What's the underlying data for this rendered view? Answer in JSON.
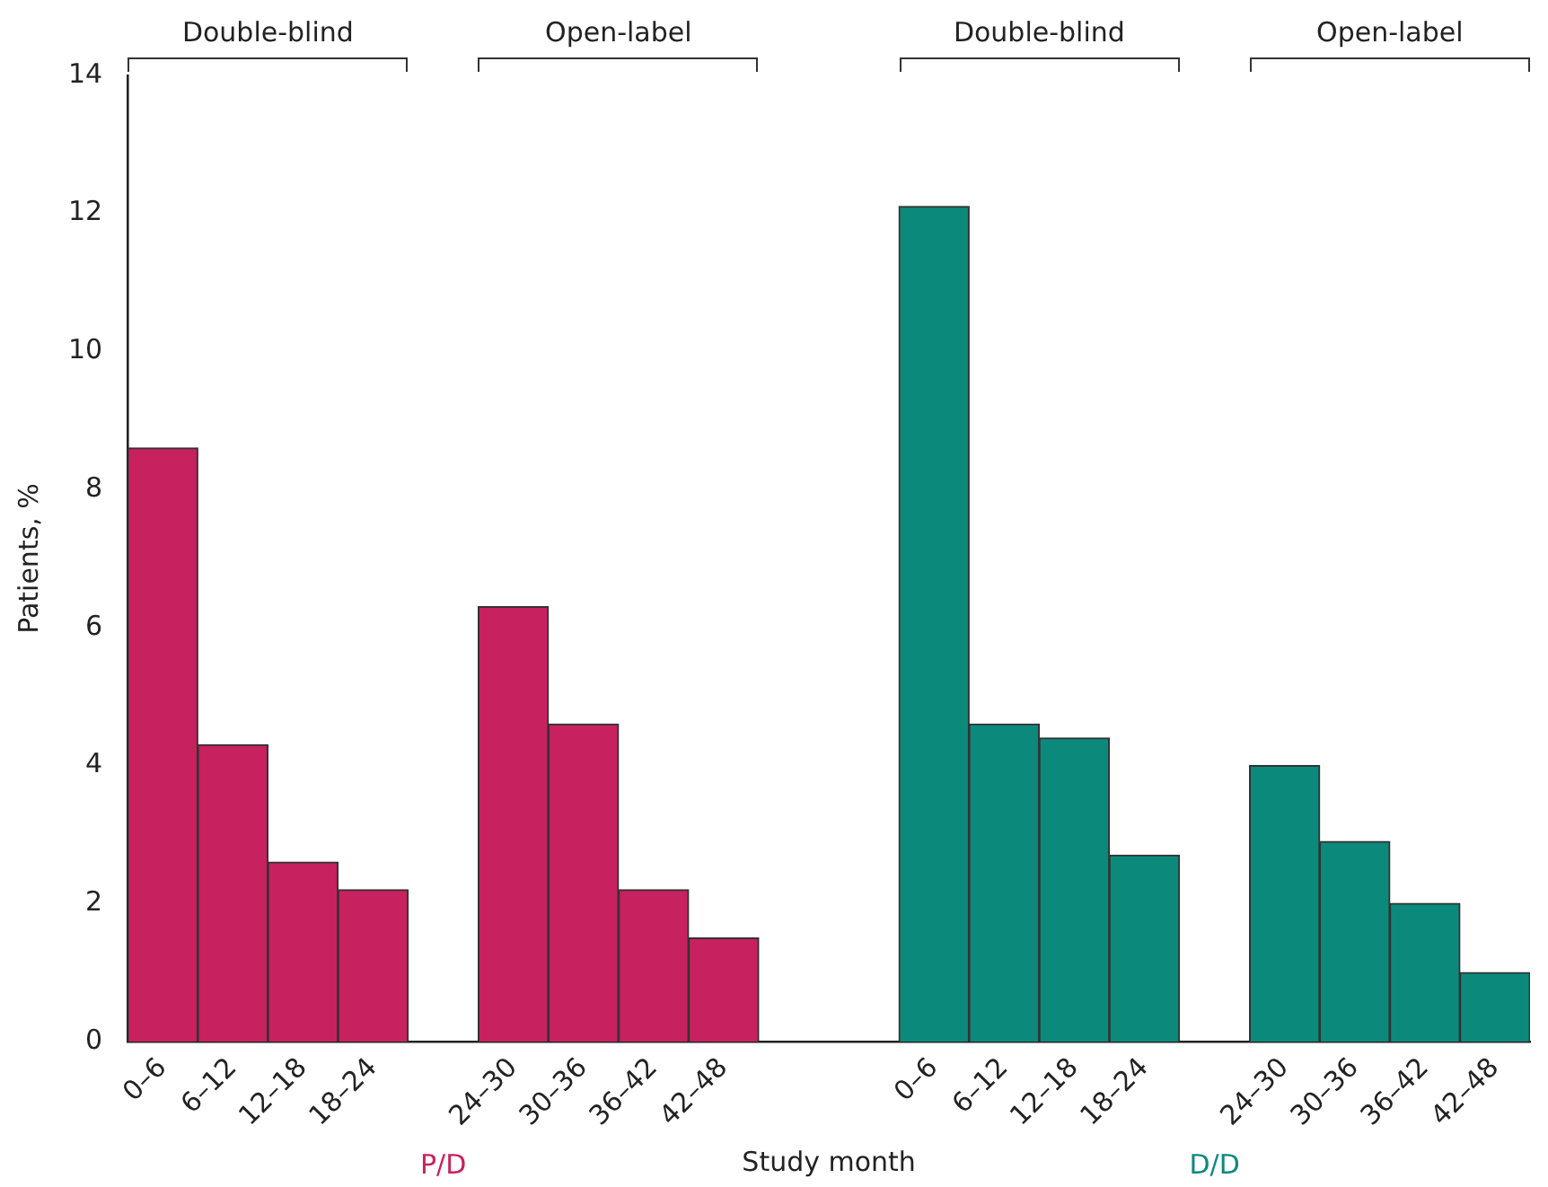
{
  "chart_data": {
    "type": "bar",
    "xlabel": "Study month",
    "ylabel": "Patients, %",
    "categories": [
      "0–6",
      "6–12",
      "12–18",
      "18–24",
      null,
      "24–30",
      "30–36",
      "36–42",
      "42–48",
      null,
      null,
      "0–6",
      "6–12",
      "12–18",
      "18–24",
      null,
      "24–30",
      "30–36",
      "36–42",
      "42–48"
    ],
    "series": [
      {
        "name": "P/D",
        "color": "#c8215f",
        "values": [
          8.6,
          4.3,
          2.6,
          2.2,
          null,
          6.3,
          4.6,
          2.2,
          1.5,
          null,
          null,
          null,
          null,
          null,
          null,
          null,
          null,
          null,
          null,
          null
        ]
      },
      {
        "name": "D/D",
        "color": "#0b8a7c",
        "values": [
          null,
          null,
          null,
          null,
          null,
          null,
          null,
          null,
          null,
          null,
          null,
          12.1,
          4.6,
          4.4,
          2.7,
          null,
          4.0,
          2.9,
          2.0,
          1.0
        ]
      }
    ],
    "annotations": [
      "Double-blind",
      "Open-label",
      "Double-blind",
      "Open-label"
    ],
    "ylim": [
      0,
      14
    ],
    "yticks": [
      0,
      2,
      4,
      6,
      8,
      10,
      12,
      14
    ],
    "grid": false,
    "legend": false
  }
}
